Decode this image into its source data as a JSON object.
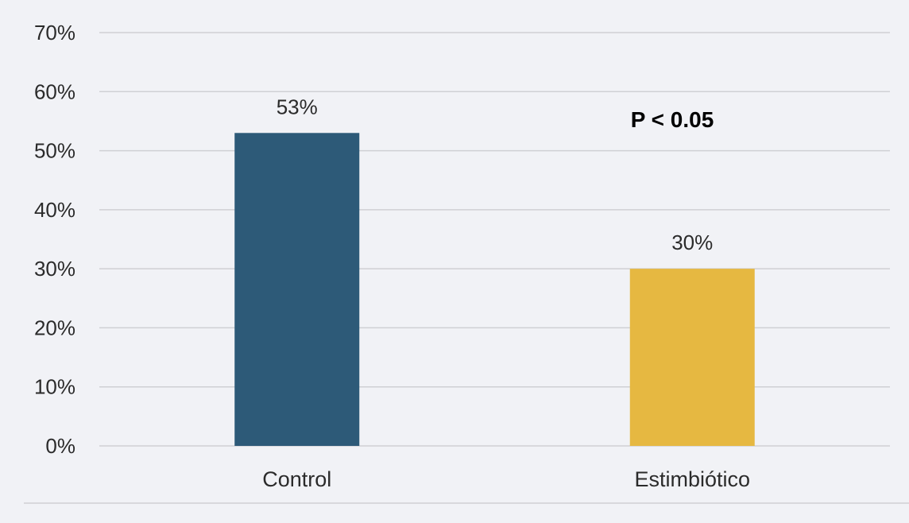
{
  "chart_data": {
    "type": "bar",
    "categories": [
      "Control",
      "Estimbiótico"
    ],
    "values": [
      53,
      30
    ],
    "data_labels": [
      "53%",
      "30%"
    ],
    "colors": [
      "#2d5a78",
      "#e6b841"
    ],
    "yticks": [
      "0%",
      "10%",
      "20%",
      "30%",
      "40%",
      "50%",
      "60%",
      "70%"
    ],
    "ylim": [
      0,
      70
    ],
    "grid": true,
    "annotation": "P < 0.05"
  }
}
